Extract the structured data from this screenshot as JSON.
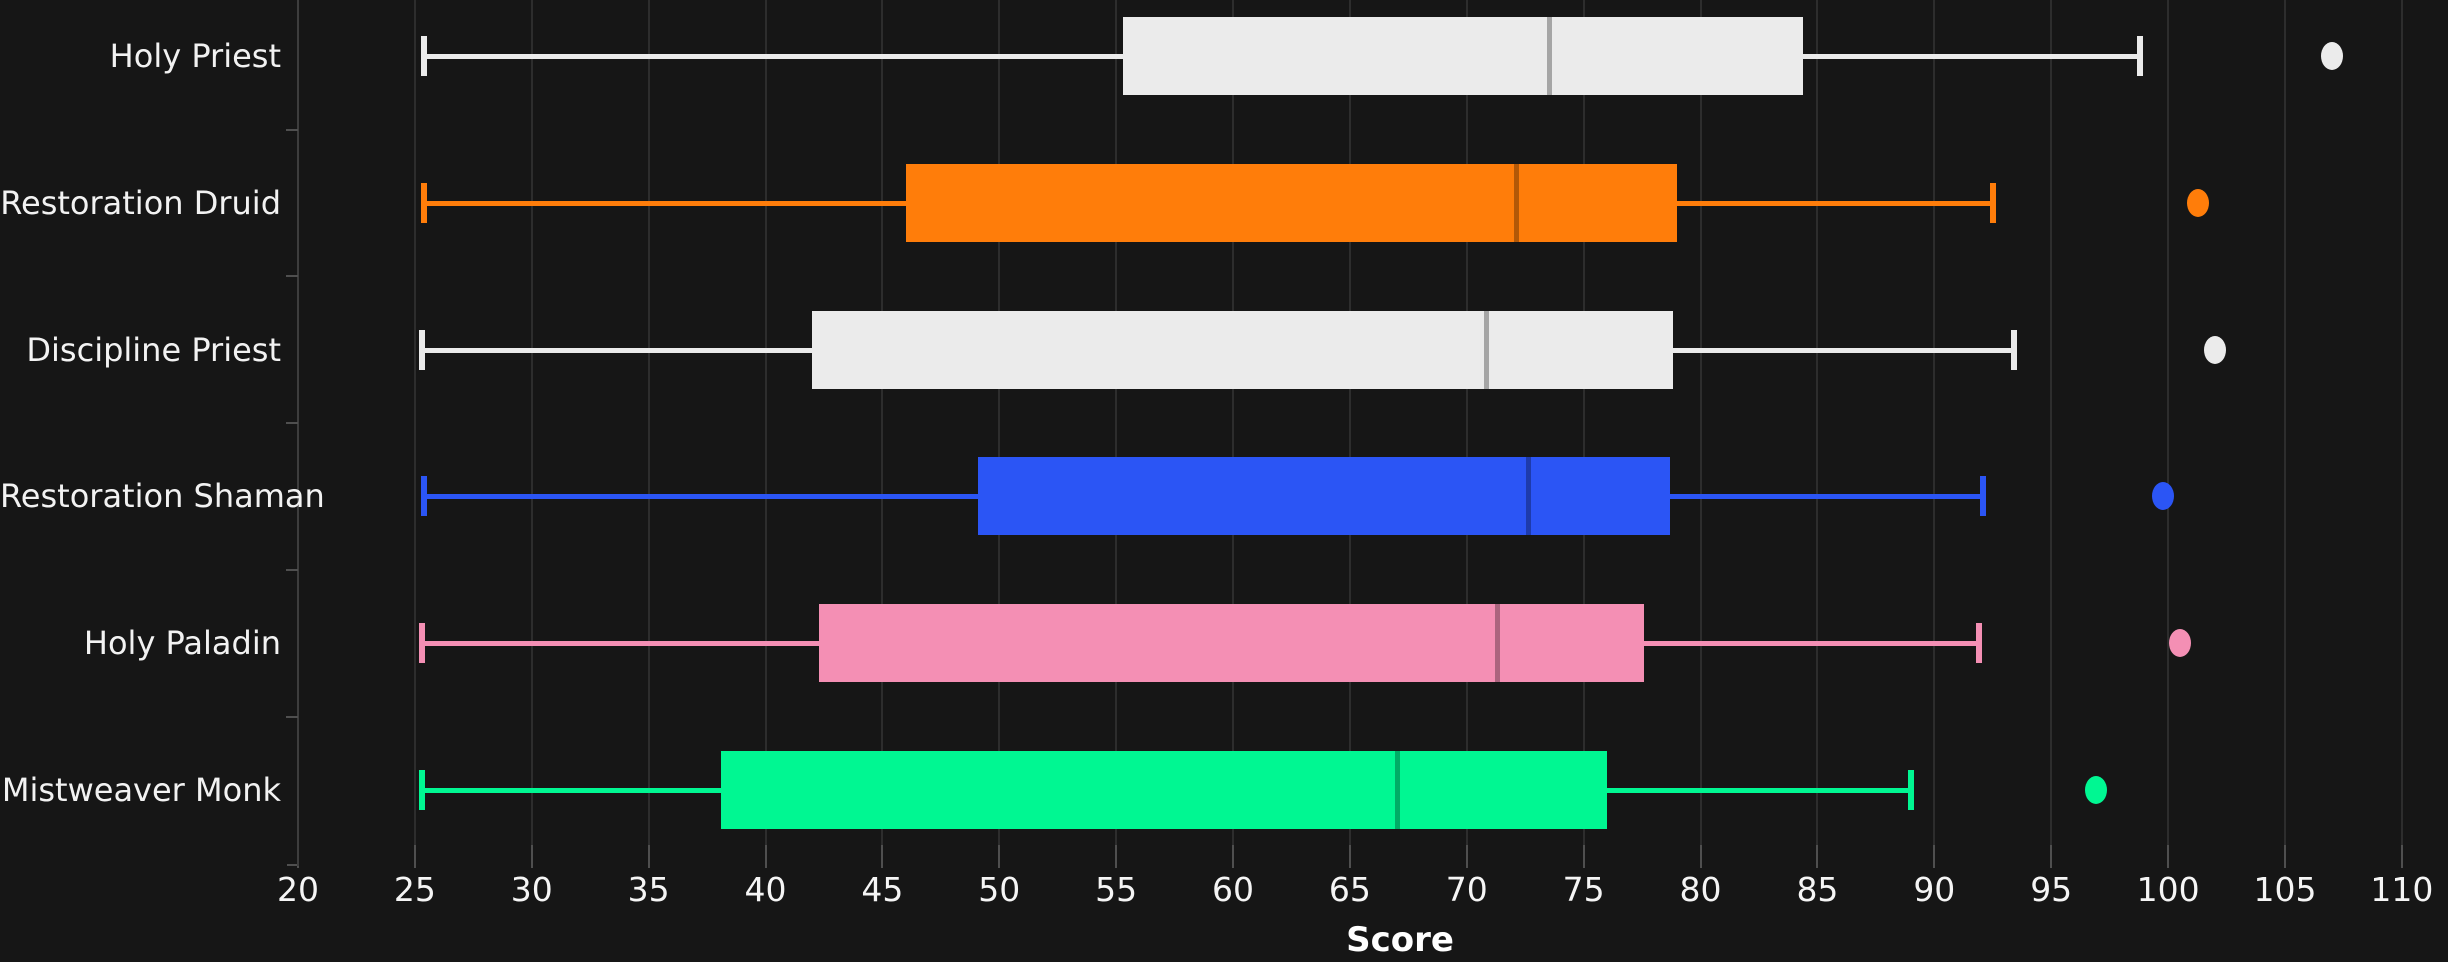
{
  "figure": {
    "background_color": "#161616",
    "grid_color": "#2d2d2d",
    "axis_line_color": "#3d3d3d",
    "tick_mark_color": "#4f4f4f",
    "tick_label_color": "#f5f5f5",
    "category_label_color": "#f2f2f2"
  },
  "chart_data": {
    "type": "box",
    "orientation": "horizontal",
    "title": "",
    "xlabel": "Score",
    "ylabel": "",
    "grid": true,
    "legend": false,
    "xlim": [
      20,
      112
    ],
    "x_ticks": [
      20,
      25,
      30,
      35,
      40,
      45,
      50,
      55,
      60,
      65,
      70,
      75,
      80,
      85,
      90,
      95,
      100,
      105,
      110
    ],
    "categories": [
      "Holy Priest",
      "Restoration Druid",
      "Discipline Priest",
      "Restoration Shaman",
      "Holy Paladin",
      "Mistweaver Monk"
    ],
    "series": [
      {
        "label": "Holy Priest",
        "color": "#EBEBEB",
        "whisker_low": 25.4,
        "q1": 55.3,
        "median": 73.5,
        "q3": 84.4,
        "whisker_high": 98.8,
        "outliers": [
          107.0
        ]
      },
      {
        "label": "Restoration Druid",
        "color": "#FF7D0A",
        "whisker_low": 25.4,
        "q1": 46.0,
        "median": 72.1,
        "q3": 79.0,
        "whisker_high": 92.5,
        "outliers": [
          101.3
        ]
      },
      {
        "label": "Discipline Priest",
        "color": "#EBEBEB",
        "whisker_low": 25.3,
        "q1": 42.0,
        "median": 70.8,
        "q3": 78.8,
        "whisker_high": 93.4,
        "outliers": [
          102.0
        ]
      },
      {
        "label": "Restoration Shaman",
        "color": "#2B55F5",
        "whisker_low": 25.4,
        "q1": 49.1,
        "median": 72.6,
        "q3": 78.7,
        "whisker_high": 92.1,
        "outliers": [
          99.8
        ]
      },
      {
        "label": "Holy Paladin",
        "color": "#F48FB4",
        "whisker_low": 25.3,
        "q1": 42.3,
        "median": 71.3,
        "q3": 77.6,
        "whisker_high": 91.9,
        "outliers": [
          100.5
        ]
      },
      {
        "label": "Mistweaver Monk",
        "color": "#00F792",
        "whisker_low": 25.3,
        "q1": 38.1,
        "median": 67.0,
        "q3": 76.0,
        "whisker_high": 89.0,
        "outliers": [
          96.9
        ]
      }
    ]
  }
}
